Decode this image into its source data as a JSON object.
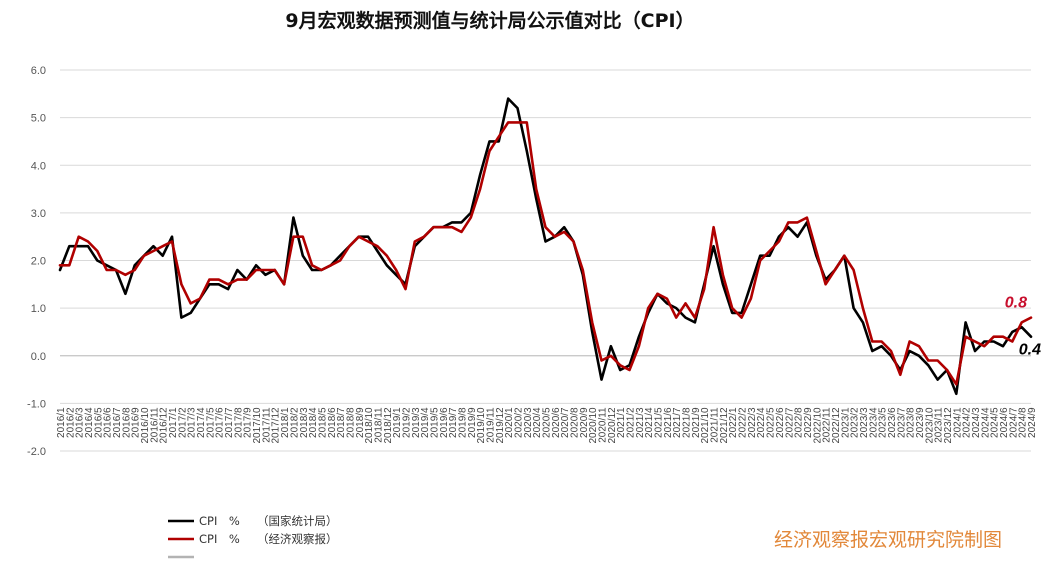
{
  "chart_data": {
    "type": "line",
    "title": "9月宏观数据预测值与统计局公示值对比（CPI）",
    "ylim": [
      -2.0,
      6.0
    ],
    "yticks": [
      "6.0",
      "5.0",
      "4.0",
      "3.0",
      "2.0",
      "1.0",
      "0.0",
      "-1.0",
      "-2.0"
    ],
    "grid": true,
    "legend_position": "bottom-left",
    "x": [
      "2016/1",
      "2016/2",
      "2016/3",
      "2016/4",
      "2016/5",
      "2016/6",
      "2016/7",
      "2016/8",
      "2016/9",
      "2016/10",
      "2016/11",
      "2016/12",
      "2017/1",
      "2017/2",
      "2017/3",
      "2017/4",
      "2017/5",
      "2017/6",
      "2017/7",
      "2017/8",
      "2017/9",
      "2017/10",
      "2017/11",
      "2017/12",
      "2018/1",
      "2018/2",
      "2018/3",
      "2018/4",
      "2018/5",
      "2018/6",
      "2018/7",
      "2018/8",
      "2018/9",
      "2018/10",
      "2018/11",
      "2018/12",
      "2019/1",
      "2019/2",
      "2019/3",
      "2019/4",
      "2019/5",
      "2019/6",
      "2019/7",
      "2019/8",
      "2019/9",
      "2019/10",
      "2019/11",
      "2019/12",
      "2020/1",
      "2020/2",
      "2020/3",
      "2020/4",
      "2020/5",
      "2020/6",
      "2020/7",
      "2020/8",
      "2020/9",
      "2020/10",
      "2020/11",
      "2020/12",
      "2021/1",
      "2021/2",
      "2021/3",
      "2021/4",
      "2021/5",
      "2021/6",
      "2021/7",
      "2021/8",
      "2021/9",
      "2021/10",
      "2021/11",
      "2021/12",
      "2022/1",
      "2022/2",
      "2022/3",
      "2022/4",
      "2022/5",
      "2022/6",
      "2022/7",
      "2022/8",
      "2022/9",
      "2022/10",
      "2022/11",
      "2022/12",
      "2023/1",
      "2023/2",
      "2023/3",
      "2023/4",
      "2023/5",
      "2023/6",
      "2023/7",
      "2023/8",
      "2023/9",
      "2023/10",
      "2023/11",
      "2023/12",
      "2024/1",
      "2024/2",
      "2024/3",
      "2024/4",
      "2024/5",
      "2024/6",
      "2024/7",
      "2024/8",
      "2024/9"
    ],
    "series": [
      {
        "name": "CPI　%　　（国家统计局）",
        "color": "#000000",
        "values": [
          1.8,
          2.3,
          2.3,
          2.3,
          2.0,
          1.9,
          1.8,
          1.3,
          1.9,
          2.1,
          2.3,
          2.1,
          2.5,
          0.8,
          0.9,
          1.2,
          1.5,
          1.5,
          1.4,
          1.8,
          1.6,
          1.9,
          1.7,
          1.8,
          1.5,
          2.9,
          2.1,
          1.8,
          1.8,
          1.9,
          2.1,
          2.3,
          2.5,
          2.5,
          2.2,
          1.9,
          1.7,
          1.5,
          2.3,
          2.5,
          2.7,
          2.7,
          2.8,
          2.8,
          3.0,
          3.8,
          4.5,
          4.5,
          5.4,
          5.2,
          4.3,
          3.3,
          2.4,
          2.5,
          2.7,
          2.4,
          1.7,
          0.5,
          -0.5,
          0.2,
          -0.3,
          -0.2,
          0.4,
          0.9,
          1.3,
          1.1,
          1.0,
          0.8,
          0.7,
          1.5,
          2.3,
          1.5,
          0.9,
          0.9,
          1.5,
          2.1,
          2.1,
          2.5,
          2.7,
          2.5,
          2.8,
          2.1,
          1.6,
          1.8,
          2.1,
          1.0,
          0.7,
          0.1,
          0.2,
          0.0,
          -0.3,
          0.1,
          0.0,
          -0.2,
          -0.5,
          -0.3,
          -0.8,
          0.7,
          0.1,
          0.3,
          0.3,
          0.2,
          0.5,
          0.6,
          0.4
        ]
      },
      {
        "name": "CPI　%　　（经济观察报）",
        "color": "#b00000",
        "values": [
          1.9,
          1.9,
          2.5,
          2.4,
          2.2,
          1.8,
          1.8,
          1.7,
          1.8,
          2.1,
          2.2,
          2.3,
          2.4,
          1.5,
          1.1,
          1.2,
          1.6,
          1.6,
          1.5,
          1.6,
          1.6,
          1.8,
          1.8,
          1.8,
          1.5,
          2.5,
          2.5,
          1.9,
          1.8,
          1.9,
          2.0,
          2.3,
          2.5,
          2.4,
          2.3,
          2.1,
          1.8,
          1.4,
          2.4,
          2.5,
          2.7,
          2.7,
          2.7,
          2.6,
          2.9,
          3.5,
          4.3,
          4.6,
          4.9,
          4.9,
          4.9,
          3.5,
          2.7,
          2.5,
          2.6,
          2.4,
          1.8,
          0.7,
          -0.1,
          0.0,
          -0.2,
          -0.3,
          0.2,
          1.0,
          1.3,
          1.2,
          0.8,
          1.1,
          0.8,
          1.4,
          2.7,
          1.7,
          1.0,
          0.8,
          1.2,
          2.0,
          2.2,
          2.4,
          2.8,
          2.8,
          2.9,
          2.2,
          1.5,
          1.8,
          2.1,
          1.8,
          1.0,
          0.3,
          0.3,
          0.1,
          -0.4,
          0.3,
          0.2,
          -0.1,
          -0.1,
          -0.3,
          -0.6,
          0.4,
          0.3,
          0.2,
          0.4,
          0.4,
          0.3,
          0.7,
          0.8
        ]
      }
    ],
    "end_labels": [
      {
        "text": "0.8",
        "color": "#c8102e"
      },
      {
        "text": "0.4",
        "color": "#000000"
      }
    ],
    "legend_extra_color": "#b3b3b3"
  },
  "credit": "经济观察报宏观研究院制图"
}
